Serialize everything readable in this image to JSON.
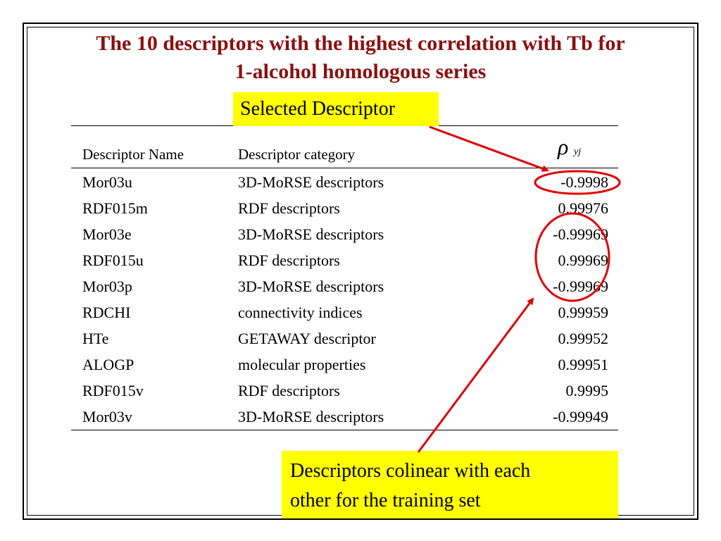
{
  "title": {
    "line1": "The 10 descriptors with the highest correlation with Tb for",
    "line2": "1-alcohol homologous series"
  },
  "callouts": {
    "top": "Selected Descriptor",
    "bottom_line1": "Descriptors colinear with each",
    "bottom_line2": "other for the training set"
  },
  "table": {
    "headers": {
      "name": "Descriptor Name",
      "category": "Descriptor category",
      "value_symbol": "ρ",
      "value_subscript": "yj"
    },
    "rows": [
      {
        "name": "Mor03u",
        "category": "3D-MoRSE descriptors",
        "value": "-0.9998"
      },
      {
        "name": "RDF015m",
        "category": "RDF descriptors",
        "value": "0.99976"
      },
      {
        "name": "Mor03e",
        "category": "3D-MoRSE descriptors",
        "value": "-0.99969"
      },
      {
        "name": "RDF015u",
        "category": "RDF descriptors",
        "value": "0.99969"
      },
      {
        "name": "Mor03p",
        "category": "3D-MoRSE descriptors",
        "value": "-0.99969"
      },
      {
        "name": "RDCHI",
        "category": "connectivity indices",
        "value": "0.99959"
      },
      {
        "name": "HTe",
        "category": "GETAWAY descriptor",
        "value": "0.99952"
      },
      {
        "name": "ALOGP",
        "category": "molecular properties",
        "value": "0.99951"
      },
      {
        "name": "RDF015v",
        "category": "RDF descriptors",
        "value": "0.9995"
      },
      {
        "name": "Mor03v",
        "category": "3D-MoRSE descriptors",
        "value": "-0.99949"
      }
    ]
  },
  "colors": {
    "title": "#8b0f0f",
    "callout_bg": "#ffff00",
    "annotation": "#e00000"
  }
}
